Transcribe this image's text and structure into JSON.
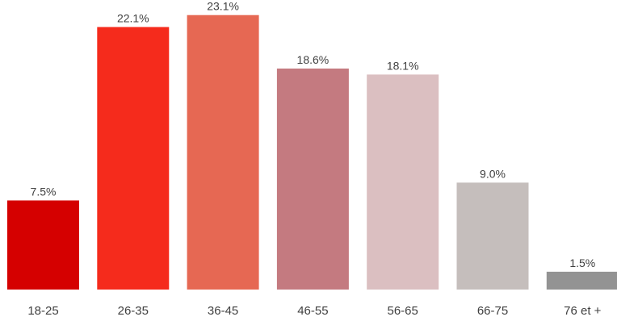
{
  "chart_data": {
    "type": "bar",
    "categories": [
      "18-25",
      "26-35",
      "36-45",
      "46-55",
      "56-65",
      "66-75",
      "76 et +"
    ],
    "values": [
      7.5,
      22.1,
      23.1,
      18.6,
      18.1,
      9.0,
      1.5
    ],
    "value_labels": [
      "7.5%",
      "22.1%",
      "23.1%",
      "18.6%",
      "18.1%",
      "9.0%",
      "1.5%"
    ],
    "colors": [
      "#d50000",
      "#f52b1c",
      "#e66853",
      "#c47a80",
      "#dbbfc1",
      "#c5bebc",
      "#939393"
    ],
    "title": "",
    "xlabel": "",
    "ylabel": "",
    "grid": false,
    "legend": "none"
  }
}
